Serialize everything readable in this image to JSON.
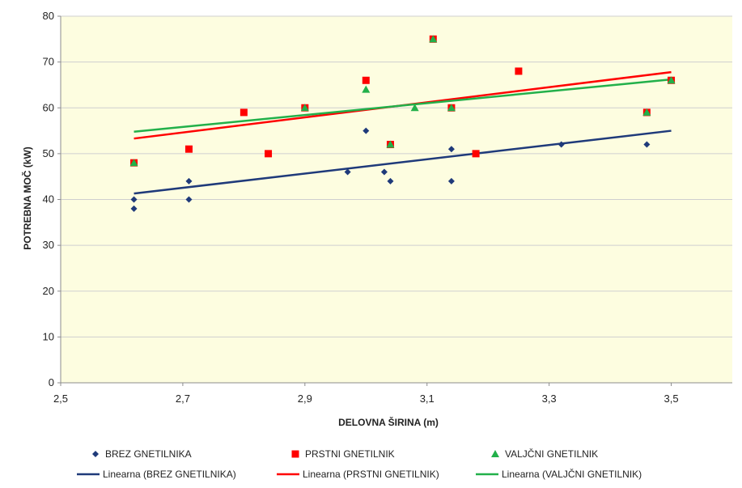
{
  "chart_data": {
    "type": "scatter",
    "xlabel": "DELOVNA ŠIRINA (m)",
    "ylabel": "POTREBNA MOČ (kW)",
    "xlim": [
      2.5,
      3.6
    ],
    "ylim": [
      0,
      80
    ],
    "x_ticks": [
      "2,5",
      "2,7",
      "2,9",
      "3,1",
      "3,3",
      "3,5"
    ],
    "x_tick_values": [
      2.5,
      2.7,
      2.9,
      3.1,
      3.3,
      3.5
    ],
    "y_ticks": [
      "0",
      "10",
      "20",
      "30",
      "40",
      "50",
      "60",
      "70",
      "80"
    ],
    "y_tick_values": [
      0,
      10,
      20,
      30,
      40,
      50,
      60,
      70,
      80
    ],
    "grid": "horizontal",
    "legend_position": "bottom",
    "colors": {
      "plot_background": "#fdfde0",
      "brez": "#1f3a7a",
      "prstni": "#ff0000",
      "valjcni": "#22b04a"
    },
    "series": [
      {
        "name": "BREZ GNETILNIKA",
        "marker": "diamond",
        "points": [
          [
            2.62,
            40
          ],
          [
            2.62,
            38
          ],
          [
            2.71,
            44
          ],
          [
            2.71,
            40
          ],
          [
            2.97,
            46
          ],
          [
            3.0,
            55
          ],
          [
            3.03,
            46
          ],
          [
            3.04,
            44
          ],
          [
            3.14,
            51
          ],
          [
            3.14,
            44
          ],
          [
            3.32,
            52
          ],
          [
            3.46,
            52
          ]
        ]
      },
      {
        "name": "PRSTNI GNETILNIK",
        "marker": "square",
        "points": [
          [
            2.62,
            48
          ],
          [
            2.71,
            51
          ],
          [
            2.8,
            59
          ],
          [
            2.84,
            50
          ],
          [
            2.9,
            60
          ],
          [
            3.0,
            66
          ],
          [
            3.04,
            52
          ],
          [
            3.11,
            75
          ],
          [
            3.14,
            60
          ],
          [
            3.18,
            50
          ],
          [
            3.25,
            68
          ],
          [
            3.46,
            59
          ],
          [
            3.5,
            66
          ]
        ]
      },
      {
        "name": "VALJČNI GNETILNIK",
        "marker": "triangle",
        "points": [
          [
            2.62,
            48
          ],
          [
            2.9,
            60
          ],
          [
            3.0,
            64
          ],
          [
            3.04,
            52
          ],
          [
            3.08,
            60
          ],
          [
            3.11,
            75
          ],
          [
            3.14,
            60
          ],
          [
            3.46,
            59
          ],
          [
            3.5,
            66
          ]
        ]
      }
    ],
    "trendlines": [
      {
        "name": "Linearna (BREZ GNETILNIKA)",
        "from": [
          2.62,
          41.3
        ],
        "to": [
          3.5,
          55.0
        ]
      },
      {
        "name": "Linearna (PRSTNI GNETILNIK)",
        "from": [
          2.62,
          53.3
        ],
        "to": [
          3.5,
          67.8
        ]
      },
      {
        "name": "Linearna (VALJČNI GNETILNIK)",
        "from": [
          2.62,
          54.8
        ],
        "to": [
          3.5,
          66.2
        ]
      }
    ]
  }
}
